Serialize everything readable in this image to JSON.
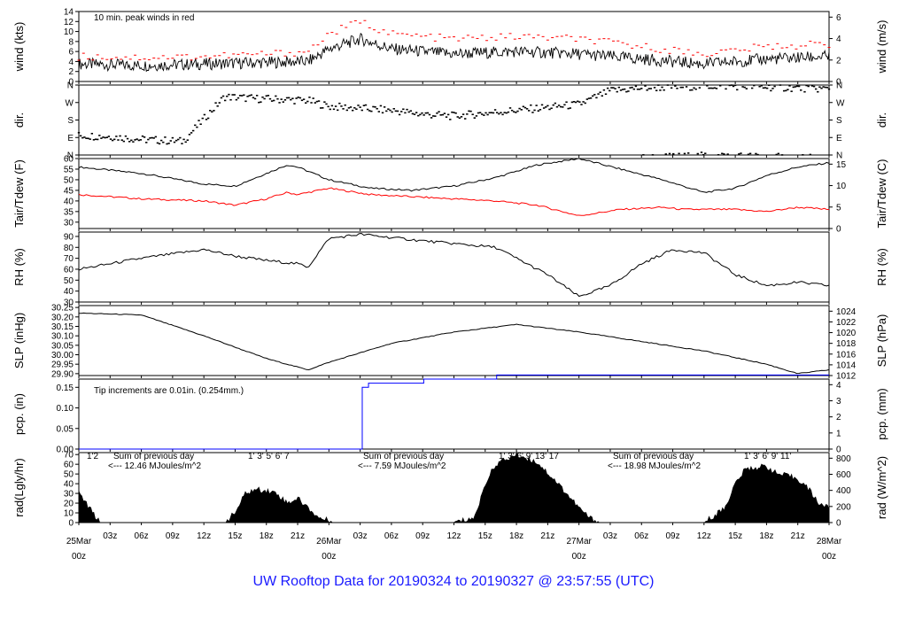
{
  "title": "UW Rooftop Data for 20190324  to  20190327 @ 23:57:55  (UTC)",
  "colors": {
    "title": "#1a1aff",
    "red": "#ff0000",
    "blue": "#0000ff",
    "purple": "#a020f0",
    "black": "#000000"
  },
  "x_hour_labels": [
    "03z",
    "06z",
    "09z",
    "12z",
    "15z",
    "18z",
    "21z"
  ],
  "day_labels": [
    {
      "day": "25Mar",
      "hour": "00z"
    },
    {
      "day": "26Mar",
      "hour": "00z"
    },
    {
      "day": "27Mar",
      "hour": "00z"
    },
    {
      "day": "28Mar",
      "hour": "00z"
    }
  ],
  "chart_data": [
    {
      "id": "wind",
      "type": "line",
      "ylabel_left": "wind (kts)",
      "ylabel_right": "wind (m/s)",
      "yticks_left": [
        "0",
        "2",
        "4",
        "6",
        "8",
        "10",
        "12",
        "14"
      ],
      "ylim_left": [
        0,
        14
      ],
      "yticks_right": [
        "0",
        "2",
        "4",
        "6"
      ],
      "annotation": "10 min. peak winds in red",
      "x_hours": [
        0,
        6,
        12,
        18,
        22,
        24,
        27,
        30,
        36,
        42,
        48,
        54,
        60,
        66,
        72
      ],
      "series": [
        {
          "values": [
            3.5,
            3.2,
            3.5,
            3.8,
            4.0,
            6.5,
            8.5,
            6.5,
            5.5,
            6.0,
            5.5,
            4.5,
            3.5,
            4.5,
            5.0
          ]
        },
        {
          "values": [
            5.0,
            4.8,
            5.0,
            5.5,
            6.0,
            9.5,
            12,
            9.5,
            8.5,
            9.0,
            8.5,
            7.0,
            5.5,
            7.0,
            7.5
          ]
        }
      ]
    },
    {
      "id": "dir",
      "type": "scatter",
      "ylabel_left": "dir.",
      "ylabel_right": "dir.",
      "yticks_left": [
        "N",
        "E",
        "S",
        "W",
        "N"
      ],
      "yticks_right": [
        "N",
        "E",
        "S",
        "W",
        "N"
      ],
      "x_hours": [
        0,
        3,
        6,
        10,
        14,
        17,
        20,
        22,
        24,
        27,
        30,
        33,
        36,
        39,
        42,
        45,
        48,
        51,
        54,
        57,
        60,
        63,
        66,
        69,
        72
      ],
      "values_deg": [
        100,
        95,
        80,
        70,
        300,
        290,
        285,
        280,
        250,
        240,
        230,
        210,
        200,
        215,
        230,
        245,
        260,
        330,
        345,
        350,
        355,
        355,
        350,
        345,
        340
      ]
    },
    {
      "id": "temp",
      "type": "line",
      "ylabel_left": "Tair/Tdew (F)",
      "ylabel_right": "Tair/Tdew (C)",
      "yticks_left": [
        "30",
        "35",
        "40",
        "45",
        "50",
        "55",
        "60"
      ],
      "ylim_left": [
        27,
        60
      ],
      "yticks_right": [
        "0",
        "5",
        "10",
        "15"
      ],
      "x_hours": [
        0,
        6,
        12,
        15,
        18,
        20,
        21,
        24,
        28,
        32,
        36,
        40,
        44,
        48,
        52,
        56,
        58,
        60,
        63,
        66,
        69,
        72
      ],
      "series": [
        {
          "name": "Tair",
          "values": [
            56,
            53,
            48,
            47,
            53,
            57,
            56,
            50,
            46,
            45,
            47,
            51,
            57,
            60,
            55,
            50,
            47,
            44,
            46,
            52,
            56,
            58
          ]
        },
        {
          "name": "Tdew",
          "values": [
            43,
            41,
            40,
            38,
            41,
            44,
            43,
            46,
            43,
            42,
            41,
            40,
            38,
            33,
            36,
            37,
            36,
            36,
            36,
            35,
            37,
            36
          ]
        }
      ]
    },
    {
      "id": "rh",
      "type": "line",
      "ylabel_left": "RH (%)",
      "ylabel_right": "RH (%)",
      "yticks_left": [
        "30",
        "40",
        "50",
        "60",
        "70",
        "80",
        "90"
      ],
      "ylim_left": [
        30,
        94
      ],
      "x_hours": [
        0,
        6,
        12,
        15,
        18,
        21,
        22,
        24,
        27,
        33,
        40,
        45,
        48,
        51,
        54,
        57,
        60,
        63,
        66,
        69,
        72
      ],
      "values": [
        60,
        70,
        78,
        72,
        68,
        65,
        62,
        88,
        92,
        86,
        80,
        55,
        35,
        45,
        65,
        78,
        75,
        55,
        45,
        48,
        45
      ]
    },
    {
      "id": "slp",
      "type": "line",
      "ylabel_left": "SLP (inHg)",
      "ylabel_right": "SLP (hPa)",
      "yticks_left": [
        "29.90",
        "29.95",
        "30.00",
        "30.05",
        "30.10",
        "30.15",
        "30.20",
        "30.25"
      ],
      "ylim_left": [
        29.89,
        30.26
      ],
      "yticks_right": [
        "1012",
        "1014",
        "1016",
        "1018",
        "1020",
        "1022",
        "1024"
      ],
      "x_hours": [
        0,
        6,
        12,
        18,
        22,
        24,
        30,
        36,
        42,
        48,
        54,
        60,
        66,
        69,
        72
      ],
      "values": [
        30.22,
        30.21,
        30.1,
        29.98,
        29.92,
        29.96,
        30.06,
        30.12,
        30.16,
        30.12,
        30.07,
        30.02,
        29.95,
        29.9,
        29.92
      ]
    },
    {
      "id": "pcp",
      "type": "line",
      "ylabel_left": "pcp. (in)",
      "ylabel_right": "pcp. (mm)",
      "yticks_left": [
        "0.00",
        "0.05",
        "0.10",
        "0.15"
      ],
      "ylim_left": [
        0,
        0.17
      ],
      "yticks_right": [
        "0",
        "1",
        "2",
        "3",
        "4"
      ],
      "annotation": "Tip increments are 0.01in. (0.254mm.)",
      "x_hours": [
        0,
        24.8,
        27.2,
        27.8,
        33.0,
        33.1,
        40.0,
        40.1,
        72
      ],
      "values": [
        0,
        0,
        0.15,
        0.16,
        0.16,
        0.17,
        0.17,
        0.18,
        0.18
      ]
    },
    {
      "id": "rad",
      "type": "area",
      "ylabel_left": "rad(Lgly/hr)",
      "ylabel_right": "rad (W/m^2)",
      "yticks_left": [
        "0",
        "10",
        "20",
        "30",
        "40",
        "50",
        "60",
        "70"
      ],
      "ylim_left": [
        0,
        72
      ],
      "yticks_right": [
        "0",
        "200",
        "400",
        "600",
        "800"
      ],
      "x_hours": [
        0,
        2,
        12,
        14,
        15,
        16,
        17,
        18,
        19,
        20,
        21,
        22,
        23,
        24,
        24.5,
        36,
        38,
        39,
        40,
        42,
        44,
        46,
        48,
        49,
        50,
        60,
        62,
        63,
        64,
        66,
        67,
        68,
        69,
        70,
        71,
        72
      ],
      "values": [
        30,
        0,
        0,
        0,
        10,
        30,
        34,
        33,
        30,
        20,
        25,
        15,
        5,
        2,
        0,
        0,
        5,
        40,
        60,
        70,
        62,
        40,
        15,
        5,
        0,
        0,
        15,
        40,
        55,
        58,
        50,
        48,
        45,
        35,
        20,
        15
      ],
      "annotations": [
        {
          "text": "Sum of previous day",
          "value": "<--- 12.46 MJoules/m^2",
          "hours": "1'2"
        },
        {
          "text": "Sum of previous day",
          "value": "<--- 7.59 MJoules/m^2",
          "hours": "1' 3' 5' 6' 7"
        },
        {
          "text": "Sum of previous day",
          "value": "<--- 18.98 MJoules/m^2",
          "hours": "1' 3' 6' 9' 13' 17"
        },
        {
          "text": "",
          "value": "",
          "hours": "1' 3' 6' 9' 11'"
        }
      ]
    }
  ]
}
